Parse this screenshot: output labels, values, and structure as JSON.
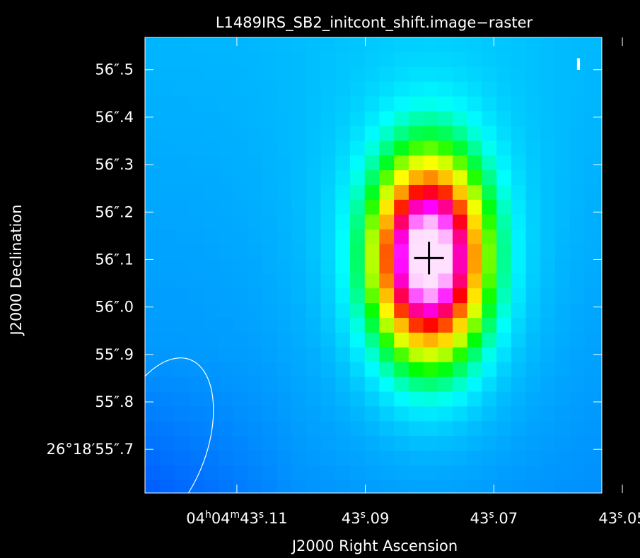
{
  "chart_data": {
    "type": "heatmap",
    "title": "L1489IRS_SB2_initcont_shift.image−raster",
    "xlabel": "J2000 Right Ascension",
    "ylabel": "J2000 Declination",
    "stokes_label": "I",
    "colormap": [
      "#000070",
      "#0010c0",
      "#0040ff",
      "#0080ff",
      "#00c0ff",
      "#00ffff",
      "#00ff80",
      "#00ff00",
      "#a0ff00",
      "#ffff00",
      "#ffc000",
      "#ff6000",
      "#ff0000",
      "#ff0080",
      "#ff00ff",
      "#ff80ff",
      "#ffe0ff"
    ],
    "x_ticks": [
      {
        "sec": 43.11,
        "h": "04",
        "m": "04",
        "s": "43",
        "frac": ".11",
        "full": true
      },
      {
        "sec": 43.09,
        "s": "43",
        "frac": ".09"
      },
      {
        "sec": 43.07,
        "s": "43",
        "frac": ".07"
      },
      {
        "sec": 43.05,
        "s": "43",
        "frac": ".05"
      }
    ],
    "xlim": [
      43.1243,
      43.0532
    ],
    "y_ticks": [
      {
        "val": 55.7,
        "text": "26°18′55″.7"
      },
      {
        "val": 55.8,
        "text": "55″.8"
      },
      {
        "val": 55.9,
        "text": "55″.9"
      },
      {
        "val": 56.0,
        "text": "56″.0"
      },
      {
        "val": 56.1,
        "text": "56″.1"
      },
      {
        "val": 56.2,
        "text": "56″.2"
      },
      {
        "val": 56.3,
        "text": "56″.3"
      },
      {
        "val": 56.4,
        "text": "56″.4"
      },
      {
        "val": 56.5,
        "text": "56″.5"
      }
    ],
    "ylim": [
      55.608,
      56.568
    ],
    "peak": {
      "ra_sec": 43.0801,
      "dec_arcsec": 56.103
    },
    "source": {
      "ra_sec": 43.0801,
      "dec_arcsec": 56.103,
      "sigma_ra_sec": 0.00575,
      "sigma_dec_arcsec": 0.138,
      "amplitude": 1.0
    },
    "background": {
      "level": 0.2
    },
    "halo": {
      "amplitude": 0.08,
      "sigma_scale": 2.3
    },
    "beam": {
      "center_ra_sec": 43.1222,
      "center_dec_arcsec": 55.709,
      "semi_major_arcsec": 0.192,
      "semi_minor_sec": 0.0075,
      "angle_deg": 20
    }
  }
}
